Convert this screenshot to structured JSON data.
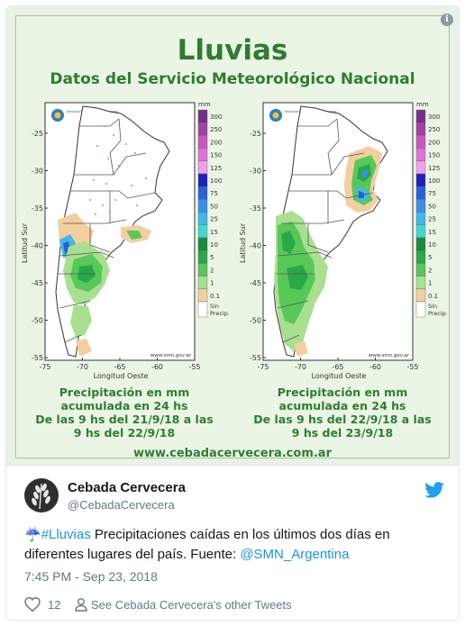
{
  "image": {
    "title": "Lluvias",
    "subtitle": "Datos del Servicio Meteorológico Nacional",
    "website": "www.cebadacervecera.com.ar",
    "info_icon": "i",
    "maps": [
      {
        "ylabel": "Latitud Sur",
        "xlabel": "Longitud Oeste",
        "credit": "www.smn.gov.ar",
        "logo_text": "Servicio Meteorológico Nacional",
        "y_ticks": [
          "-25",
          "-30",
          "-35",
          "-40",
          "-45",
          "-50",
          "-55"
        ],
        "x_ticks": [
          "-75",
          "-70",
          "-65",
          "-60",
          "-55"
        ],
        "caption_lines": [
          "Precipitación en mm",
          "acumulada en 24 hs",
          "De las 9 hs del 21/9/18 a las",
          "9 hs del 22/9/18"
        ]
      },
      {
        "ylabel": "Latitud Sur",
        "xlabel": "Longitud Oeste",
        "credit": "www.smn.gov.ar",
        "logo_text": "Servicio Meteorológico Nacional",
        "y_ticks": [
          "-25",
          "-30",
          "-35",
          "-40",
          "-45",
          "-50",
          "-55"
        ],
        "x_ticks": [
          "-75",
          "-70",
          "-65",
          "-60",
          "-55"
        ],
        "caption_lines": [
          "Precipitación en mm",
          "acumulada en 24 hs",
          "De las 9 hs del 22/9/18 a las",
          "9 hs del 23/9/18"
        ]
      }
    ],
    "legend": {
      "unit": "mm",
      "levels": [
        "300",
        "250",
        "200",
        "150",
        "125",
        "100",
        "75",
        "50",
        "25",
        "15",
        "10",
        "5",
        "2",
        "1",
        "0.1"
      ],
      "no_precip": [
        "Sin",
        "Precip."
      ],
      "colors": [
        "#7b2d8e",
        "#a040a8",
        "#c858c0",
        "#e070d8",
        "#f0a0ec",
        "#2020c0",
        "#2a5fd8",
        "#3a90e8",
        "#40b8e8",
        "#40d8d0",
        "#1a8a3a",
        "#28a848",
        "#58c858",
        "#a8e090",
        "#f3cfa0"
      ],
      "no_precip_color": "#ffffff"
    }
  },
  "tweet": {
    "author_name": "Cebada Cervecera",
    "author_handle": "@CebadaCervecera",
    "emoji": "☔",
    "hashtag": "#Lluvias",
    "text": " Precipitaciones caídas en los últimos dos días en diferentes lugares del país. Fuente: ",
    "mention": "@SMN_Argentina",
    "timestamp": "7:45 PM - Sep 23, 2018",
    "likes": "12",
    "other_tweets": "See Cebada Cervecera's other Tweets",
    "accent_color": "#1b95e0"
  }
}
